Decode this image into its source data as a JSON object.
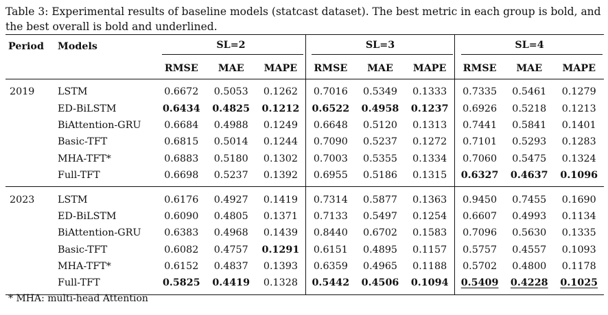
{
  "caption": "Table 3: Experimental results of baseline models (statcast dataset). The best metric in each group is bold, and the best overall is bold and underlined.",
  "headers": {
    "period": "Period",
    "models": "Models",
    "groups": [
      "SL=2",
      "SL=3",
      "SL=4"
    ],
    "metrics": [
      "RMSE",
      "MAE",
      "MAPE"
    ]
  },
  "periods": [
    {
      "label": "2019",
      "rows": [
        {
          "model": "LSTM",
          "values": [
            "0.6672",
            "0.5053",
            "0.1262",
            "0.7016",
            "0.5349",
            "0.1333",
            "0.7335",
            "0.5461",
            "0.1279"
          ],
          "styles": [
            "",
            "",
            "",
            "",
            "",
            "",
            "",
            "",
            ""
          ]
        },
        {
          "model": "ED-BiLSTM",
          "values": [
            "0.6434",
            "0.4825",
            "0.1212",
            "0.6522",
            "0.4958",
            "0.1237",
            "0.6926",
            "0.5218",
            "0.1213"
          ],
          "styles": [
            "bold",
            "bold",
            "bold",
            "bold",
            "bold",
            "bold",
            "",
            "",
            ""
          ]
        },
        {
          "model": "BiAttention-GRU",
          "values": [
            "0.6684",
            "0.4988",
            "0.1249",
            "0.6648",
            "0.5120",
            "0.1313",
            "0.7441",
            "0.5841",
            "0.1401"
          ],
          "styles": [
            "",
            "",
            "",
            "",
            "",
            "",
            "",
            "",
            ""
          ]
        },
        {
          "model": "Basic-TFT",
          "values": [
            "0.6815",
            "0.5014",
            "0.1244",
            "0.7090",
            "0.5237",
            "0.1272",
            "0.7101",
            "0.5293",
            "0.1283"
          ],
          "styles": [
            "",
            "",
            "",
            "",
            "",
            "",
            "",
            "",
            ""
          ]
        },
        {
          "model": "MHA-TFT*",
          "values": [
            "0.6883",
            "0.5180",
            "0.1302",
            "0.7003",
            "0.5355",
            "0.1334",
            "0.7060",
            "0.5475",
            "0.1324"
          ],
          "styles": [
            "",
            "",
            "",
            "",
            "",
            "",
            "",
            "",
            ""
          ]
        },
        {
          "model": "Full-TFT",
          "values": [
            "0.6698",
            "0.5237",
            "0.1392",
            "0.6955",
            "0.5186",
            "0.1315",
            "0.6327",
            "0.4637",
            "0.1096"
          ],
          "styles": [
            "",
            "",
            "",
            "",
            "",
            "",
            "bold",
            "bold",
            "bold"
          ]
        }
      ]
    },
    {
      "label": "2023",
      "rows": [
        {
          "model": "LSTM",
          "values": [
            "0.6176",
            "0.4927",
            "0.1419",
            "0.7314",
            "0.5877",
            "0.1363",
            "0.9450",
            "0.7455",
            "0.1690"
          ],
          "styles": [
            "",
            "",
            "",
            "",
            "",
            "",
            "",
            "",
            ""
          ]
        },
        {
          "model": "ED-BiLSTM",
          "values": [
            "0.6090",
            "0.4805",
            "0.1371",
            "0.7133",
            "0.5497",
            "0.1254",
            "0.6607",
            "0.4993",
            "0.1134"
          ],
          "styles": [
            "",
            "",
            "",
            "",
            "",
            "",
            "",
            "",
            ""
          ]
        },
        {
          "model": "BiAttention-GRU",
          "values": [
            "0.6383",
            "0.4968",
            "0.1439",
            "0.8440",
            "0.6702",
            "0.1583",
            "0.7096",
            "0.5630",
            "0.1335"
          ],
          "styles": [
            "",
            "",
            "",
            "",
            "",
            "",
            "",
            "",
            ""
          ]
        },
        {
          "model": "Basic-TFT",
          "values": [
            "0.6082",
            "0.4757",
            "0.1291",
            "0.6151",
            "0.4895",
            "0.1157",
            "0.5757",
            "0.4557",
            "0.1093"
          ],
          "styles": [
            "",
            "",
            "bold",
            "",
            "",
            "",
            "",
            "",
            ""
          ]
        },
        {
          "model": "MHA-TFT*",
          "values": [
            "0.6152",
            "0.4837",
            "0.1393",
            "0.6359",
            "0.4965",
            "0.1188",
            "0.5702",
            "0.4800",
            "0.1178"
          ],
          "styles": [
            "",
            "",
            "",
            "",
            "",
            "",
            "",
            "",
            ""
          ]
        },
        {
          "model": "Full-TFT",
          "values": [
            "0.5825",
            "0.4419",
            "0.1328",
            "0.5442",
            "0.4506",
            "0.1094",
            "0.5409",
            "0.4228",
            "0.1025"
          ],
          "styles": [
            "bold",
            "bold",
            "",
            "bold",
            "bold",
            "bold",
            "underline",
            "underline",
            "underline"
          ]
        }
      ]
    }
  ],
  "footnote": "* MHA: multi-head Attention"
}
